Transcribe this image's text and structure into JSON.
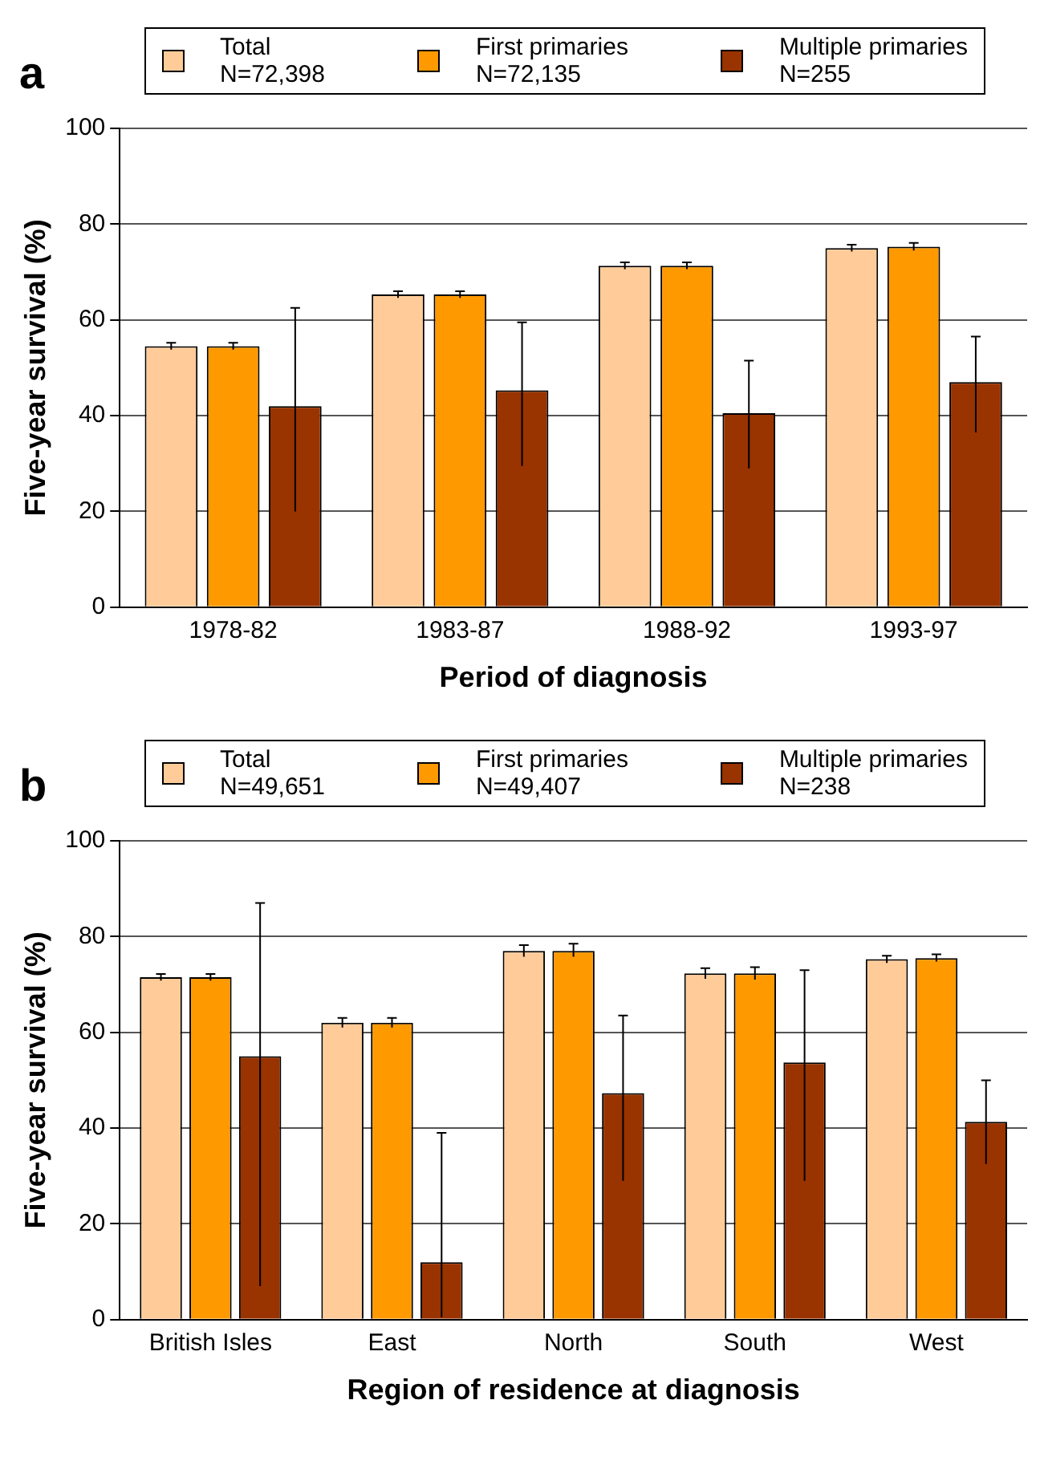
{
  "chart_data": [
    {
      "type": "bar",
      "title": "a",
      "xlabel": "Period of diagnosis",
      "ylabel": "Five-year survival (%)",
      "categories": [
        "1978-82",
        "1983-87",
        "1988-92",
        "1993-97"
      ],
      "ylim": [
        0,
        100
      ],
      "yticks": [
        0,
        20,
        40,
        60,
        80,
        100
      ],
      "grid": "y",
      "legend": "top",
      "series": [
        {
          "name": "Total\nN=72,398",
          "color": "#ffcc99",
          "values": [
            54.5,
            65.3,
            71.3,
            75
          ],
          "errors": [
            [
              53.8,
              55.2
            ],
            [
              64.6,
              66
            ],
            [
              70.6,
              72
            ],
            [
              74.3,
              75.7
            ]
          ]
        },
        {
          "name": "First primaries\nN=72,135",
          "color": "#ff9900",
          "values": [
            54.5,
            65.3,
            71.3,
            75.3
          ],
          "errors": [
            [
              53.8,
              55.2
            ],
            [
              64.6,
              66
            ],
            [
              70.6,
              72
            ],
            [
              74.5,
              76.1
            ]
          ]
        },
        {
          "name": "Multiple primaries\nN=255",
          "color": "#993300",
          "values": [
            42,
            45.3,
            40.5,
            47
          ],
          "errors": [
            [
              20,
              62.5
            ],
            [
              29.5,
              59.5
            ],
            [
              29,
              51.5
            ],
            [
              36.5,
              56.5
            ]
          ]
        }
      ]
    },
    {
      "type": "bar",
      "title": "b",
      "xlabel": "Region of residence at diagnosis",
      "ylabel": "Five-year survival (%)",
      "categories": [
        "British Isles",
        "East",
        "North",
        "South",
        "West"
      ],
      "ylim": [
        0,
        100
      ],
      "yticks": [
        0,
        20,
        40,
        60,
        80,
        100
      ],
      "grid": "y",
      "legend": "top",
      "series": [
        {
          "name": "Total\nN=49,651",
          "color": "#ffcc99",
          "values": [
            71.5,
            62,
            77,
            72.3,
            75.3
          ],
          "errors": [
            [
              70.8,
              72.2
            ],
            [
              61,
              63
            ],
            [
              75.8,
              78.2
            ],
            [
              71.2,
              73.4
            ],
            [
              74.5,
              76
            ]
          ]
        },
        {
          "name": "First primaries\nN=49,407",
          "color": "#ff9900",
          "values": [
            71.5,
            62,
            77,
            72.3,
            75.5
          ],
          "errors": [
            [
              70.8,
              72.2
            ],
            [
              61,
              63
            ],
            [
              75.8,
              78.5
            ],
            [
              71,
              73.6
            ],
            [
              74.8,
              76.3
            ]
          ]
        },
        {
          "name": "Multiple primaries\nN=238",
          "color": "#993300",
          "values": [
            55,
            12,
            47.3,
            53.7,
            41.3
          ],
          "errors": [
            [
              7,
              87
            ],
            [
              0.5,
              39
            ],
            [
              29,
              63.5
            ],
            [
              29,
              73
            ],
            [
              32.5,
              50
            ]
          ]
        }
      ]
    }
  ]
}
